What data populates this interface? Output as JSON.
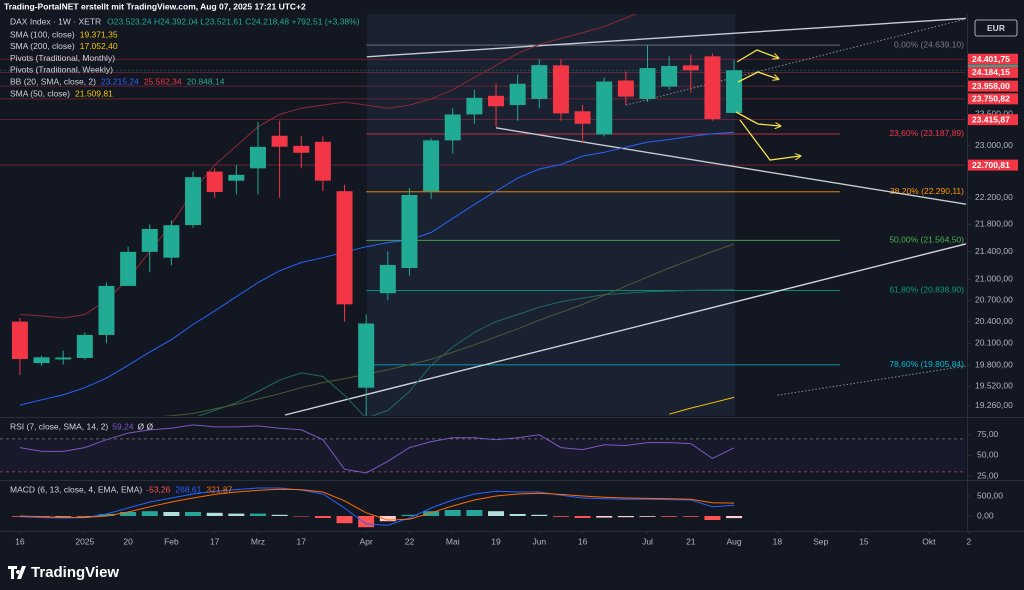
{
  "chart_data": {
    "type": "candlestick",
    "credit": "Trading-PortalNET erstellt mit TradingView.com, Aug 07, 2025 17:21 UTC+2",
    "title": "DAX Index · 1W · XETR",
    "ohlc_label": "O23.523,24 H24.392,04 L23.521,61 C24.218,48 +792,51 (+3,38%)",
    "currency": "EUR",
    "logo": "TradingView",
    "up_color": "#22ab94",
    "down_color": "#f23645",
    "open": [
      20400,
      19830,
      19880,
      19900,
      20215,
      20903,
      21395,
      21310,
      21790,
      22600,
      22460,
      22650,
      23160,
      23000,
      23064,
      22300,
      19500,
      20800,
      21160,
      22300,
      23087,
      23500,
      23800,
      23650,
      23750,
      24300,
      23550,
      23180,
      24050,
      23750,
      23950,
      24300,
      24450,
      23523.24
    ],
    "high": [
      20450,
      19930,
      20000,
      20250,
      20950,
      21470,
      21800,
      21860,
      22600,
      22650,
      22700,
      23380,
      23400,
      23150,
      23150,
      22400,
      20500,
      21400,
      22350,
      23120,
      23600,
      23900,
      24000,
      24150,
      24400,
      24400,
      23650,
      24100,
      24200,
      24639.1,
      24450,
      24480,
      24500,
      24392.04
    ],
    "low": [
      19670,
      19790,
      19810,
      19880,
      20100,
      20900,
      21100,
      21200,
      21750,
      22200,
      22250,
      22250,
      22200,
      22650,
      22300,
      20400,
      18490,
      20700,
      21050,
      22180,
      22880,
      23350,
      23300,
      23400,
      23600,
      23400,
      23050,
      23150,
      23650,
      23700,
      23900,
      23850,
      23400,
      23521.61
    ],
    "close": [
      19885,
      19909,
      19906,
      20215,
      20903,
      21395,
      21732,
      21787,
      22514,
      22287,
      22550,
      22985,
      22987,
      22892,
      22461,
      20642,
      20374,
      21205,
      22242,
      23087,
      23499,
      23767,
      23630,
      23997,
      24304,
      23516,
      23350,
      24033,
      23787,
      24255,
      24290,
      24217,
      23426,
      24218.48
    ],
    "overlays": [
      {
        "name": "SMA (100, close)",
        "value_labels": [
          "19.371,35"
        ],
        "label_color": "#f7c600",
        "lines": [
          {
            "color": "#f7c600",
            "values": [
              null,
              null,
              null,
              null,
              null,
              null,
              null,
              null,
              null,
              null,
              null,
              null,
              null,
              null,
              null,
              null,
              null,
              null,
              null,
              null,
              null,
              null,
              null,
              null,
              null,
              null,
              null,
              null,
              null,
              null,
              19150,
              19230,
              19300,
              19371.35
            ]
          }
        ]
      },
      {
        "name": "SMA (200, close)",
        "value_labels": [
          "17.052,40"
        ],
        "label_color": "#f7c600"
      },
      {
        "name": "Pivots (Traditional, Monthly)"
      },
      {
        "name": "Pivots (Traditional, Weekly)"
      },
      {
        "name": "BB (20, SMA, close, 2)",
        "value_labels": [
          "23.215,24",
          "25.582,34",
          "20.848,14"
        ],
        "label_colors": [
          "#2962ff",
          "#f23645",
          "#22ab94"
        ],
        "lines": [
          {
            "color": "#2962ff",
            "values": [
              19270,
              19340,
              19405,
              19500,
              19630,
              19800,
              19980,
              20150,
              20360,
              20550,
              20750,
              20950,
              21120,
              21240,
              21310,
              21390,
              21470,
              21530,
              21570,
              21680,
              21890,
              22100,
              22300,
              22500,
              22640,
              22710,
              22840,
              22900,
              22980,
              23060,
              23100,
              23150,
              23190,
              23215.24
            ]
          },
          {
            "color": "#8c2a33",
            "values": [
              20500,
              20480,
              20450,
              20500,
              20700,
              21000,
              21400,
              21800,
              22300,
              22700,
              23000,
              23300,
              23500,
              23600,
              23650,
              23700,
              23650,
              23600,
              23650,
              23750,
              23900,
              24100,
              24300,
              24500,
              24650,
              24750,
              24850,
              24950,
              25100,
              25250,
              25350,
              25450,
              25520,
              25582.34
            ]
          },
          {
            "color": "#1f6b5e",
            "values": [
              18800,
              18850,
              18900,
              18950,
              19000,
              19000,
              19000,
              19050,
              19100,
              19200,
              19300,
              19450,
              19600,
              19700,
              19650,
              19400,
              19100,
              19200,
              19450,
              19800,
              20050,
              20250,
              20400,
              20500,
              20600,
              20680,
              20730,
              20780,
              20800,
              20820,
              20830,
              20840,
              20845,
              20848.14
            ]
          }
        ]
      },
      {
        "name": "SMA (50, close)",
        "value_labels": [
          "21.509,81"
        ],
        "label_color": "#f7c600",
        "lines": [
          {
            "color": "#4e5a36",
            "values": [
              18900,
              18950,
              19000,
              19030,
              19060,
              19090,
              19110,
              19130,
              19160,
              19220,
              19280,
              19350,
              19420,
              19500,
              19570,
              19620,
              19680,
              19740,
              19810,
              19880,
              19980,
              20080,
              20190,
              20300,
              20420,
              20530,
              20640,
              20770,
              20900,
              21030,
              21160,
              21280,
              21400,
              21509.81
            ]
          }
        ]
      }
    ],
    "log_scale": true,
    "xlim": [
      -0.92,
      43.67
    ],
    "xticks": [
      {
        "value": 0,
        "label": "16"
      },
      {
        "value": 3,
        "label": "2025"
      },
      {
        "value": 5,
        "label": "20"
      },
      {
        "value": 7,
        "label": "Feb"
      },
      {
        "value": 9,
        "label": "17"
      },
      {
        "value": 11,
        "label": "Mrz"
      },
      {
        "value": 13,
        "label": "17"
      },
      {
        "value": 16,
        "label": "Apr"
      },
      {
        "value": 18,
        "label": "22"
      },
      {
        "value": 20,
        "label": "Mai"
      },
      {
        "value": 22,
        "label": "19"
      },
      {
        "value": 24,
        "label": "Jun"
      },
      {
        "value": 26,
        "label": "16"
      },
      {
        "value": 29,
        "label": "Jul"
      },
      {
        "value": 31,
        "label": "21"
      },
      {
        "value": 33,
        "label": "Aug"
      },
      {
        "value": 35,
        "label": "18"
      },
      {
        "value": 37,
        "label": "Sep"
      },
      {
        "value": 39,
        "label": "15"
      },
      {
        "value": 42,
        "label": "Okt"
      },
      {
        "value": 43.85,
        "label": "2"
      }
    ],
    "ylim": [
      19140,
      25150
    ],
    "yticks": [
      {
        "value": 23500,
        "label": "23.500,00"
      },
      {
        "value": 23000,
        "label": "23.000,00"
      },
      {
        "value": 22200,
        "label": "22.200,00"
      },
      {
        "value": 21800,
        "label": "21.800,00"
      },
      {
        "value": 21400,
        "label": "21.400,00"
      },
      {
        "value": 21000,
        "label": "21.000,00"
      },
      {
        "value": 20700,
        "label": "20.700,00"
      },
      {
        "value": 20400,
        "label": "20.400,00"
      },
      {
        "value": 20100,
        "label": "20.100,00"
      },
      {
        "value": 19800,
        "label": "19.800,00"
      },
      {
        "value": 19520,
        "label": "19.520,00"
      },
      {
        "value": 19260,
        "label": "19.260,00"
      }
    ],
    "price_tags": [
      {
        "value": 24401.75,
        "label": "24.401,75",
        "color": "#f23645"
      },
      {
        "value": 24218.48,
        "label": "24.218,48",
        "color": "#22ab94"
      },
      {
        "value": 24184.15,
        "label": "24.184,15",
        "color": "#f23645"
      },
      {
        "value": 23958.0,
        "label": "23.958,00",
        "color": "#f23645"
      },
      {
        "value": 23750.82,
        "label": "23.750,82",
        "color": "#f23645"
      },
      {
        "value": 23415.87,
        "label": "23.415,87",
        "color": "#f23645"
      },
      {
        "value": 22700.81,
        "label": "22.700,81",
        "color": "#f23645"
      }
    ],
    "fib_levels": [
      {
        "value": 24639.1,
        "label": "0,00% (24.639,10)",
        "color": "#787b86"
      },
      {
        "value": 23187.89,
        "label": "23,60% (23.187,89)",
        "color": "#f23645"
      },
      {
        "value": 22290.11,
        "label": "38,20% (22.290,11)",
        "color": "#ff9800"
      },
      {
        "value": 21564.5,
        "label": "50,00% (21.564,50)",
        "color": "#4caf50"
      },
      {
        "value": 20838.9,
        "label": "61,80% (20.838,90)",
        "color": "#089981"
      },
      {
        "value": 19805.84,
        "label": "78,60% (19.805,84)",
        "color": "#00bcd4"
      }
    ],
    "trendlines": [
      {
        "points": [
          [
            16.03,
            24443
          ],
          [
            43.9,
            25096
          ]
        ],
        "color": "#c9ccd4",
        "style": "solid"
      },
      {
        "points": [
          [
            22,
            23285
          ],
          [
            43.9,
            22093
          ]
        ],
        "color": "#c9ccd4",
        "style": "solid"
      },
      {
        "points": [
          [
            12.25,
            19140
          ],
          [
            43.9,
            21527
          ]
        ],
        "color": "#d1d4dc",
        "style": "solid"
      },
      {
        "points": [
          [
            28,
            23651
          ],
          [
            43.9,
            25100
          ]
        ],
        "color": "#8a8d96",
        "style": "dotted"
      },
      {
        "points": [
          [
            35,
            19400
          ],
          [
            43.9,
            19800
          ]
        ],
        "color": "#8a8d96",
        "style": "dotted"
      }
    ],
    "rsi": {
      "label": "RSI (7, close, SMA, 14, 2)",
      "value_label": "59,24",
      "extra": "Ø Ø",
      "color": "#7e57c2",
      "values": [
        59.5,
        54.8,
        54.8,
        59.5,
        69,
        77,
        81,
        83,
        87,
        84.5,
        84.5,
        85.7,
        83,
        81,
        69,
        33.3,
        28.6,
        42.9,
        59.5,
        66.7,
        71.4,
        71.4,
        69,
        71.4,
        75,
        59.5,
        57,
        63,
        62,
        65.5,
        65.5,
        64.3,
        46.4,
        59.24
      ],
      "ylim": [
        22.6,
        92.9
      ],
      "yticks": [
        {
          "value": 75,
          "label": "75,00"
        },
        {
          "value": 50,
          "label": "50,00"
        },
        {
          "value": 25,
          "label": "25,00"
        }
      ],
      "bands": [
        70,
        30
      ]
    },
    "macd": {
      "label": "MACD (6, 13, close, 4, EMA, EMA)",
      "value_labels": [
        "-53,26",
        "268,61",
        "321,87"
      ],
      "histogram": [
        -20,
        -20,
        -15,
        -2,
        50,
        100,
        120,
        100,
        100,
        80,
        60,
        60,
        30,
        -10,
        -50,
        -180,
        -280,
        -130,
        30,
        120,
        150,
        150,
        120,
        50,
        30,
        -20,
        -50,
        -40,
        -30,
        -20,
        -20,
        -20,
        -100,
        -53.26
      ],
      "macd": [
        -20,
        -40,
        -50,
        -40,
        50,
        200,
        350,
        450,
        550,
        620,
        660,
        700,
        700,
        650,
        550,
        200,
        -200,
        -230,
        -50,
        200,
        400,
        550,
        620,
        600,
        600,
        520,
        450,
        430,
        420,
        420,
        410,
        400,
        230,
        268.61
      ],
      "signal": [
        0,
        -20,
        -35,
        -38,
        0,
        100,
        230,
        350,
        450,
        540,
        600,
        640,
        670,
        660,
        600,
        380,
        80,
        -100,
        -80,
        80,
        250,
        400,
        500,
        550,
        570,
        540,
        500,
        470,
        450,
        440,
        430,
        420,
        330,
        321.87
      ],
      "macd_color": "#2962ff",
      "signal_color": "#ff6d00",
      "ylim": [
        -300,
        825
      ],
      "yticks": [
        {
          "value": 500,
          "label": "500,00"
        },
        {
          "value": 0,
          "label": "0,00"
        }
      ]
    }
  }
}
